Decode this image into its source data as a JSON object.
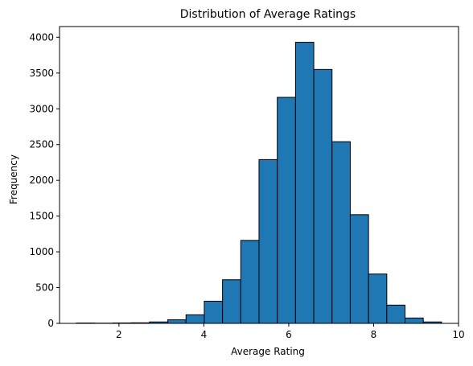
{
  "chart_data": {
    "type": "bar",
    "title": "Distribution of Average Ratings",
    "xlabel": "Average Rating",
    "ylabel": "Frequency",
    "xlim": [
      0.6,
      10.0
    ],
    "ylim": [
      0,
      4150
    ],
    "xticks": [
      2,
      4,
      6,
      8,
      10
    ],
    "yticks": [
      0,
      500,
      1000,
      1500,
      2000,
      2500,
      3000,
      3500,
      4000
    ],
    "grid": false,
    "bin_edges": [
      1.0,
      1.43,
      1.86,
      2.29,
      2.72,
      3.15,
      3.58,
      4.01,
      4.44,
      4.87,
      5.3,
      5.73,
      6.16,
      6.59,
      7.02,
      7.45,
      7.88,
      8.31,
      8.74,
      9.17,
      9.6
    ],
    "values": [
      5,
      3,
      6,
      8,
      20,
      50,
      120,
      310,
      610,
      1160,
      2290,
      3160,
      3930,
      3550,
      2540,
      1520,
      690,
      255,
      75,
      20
    ],
    "bar_color": "#1f77b4",
    "edge_color": "#000000"
  }
}
